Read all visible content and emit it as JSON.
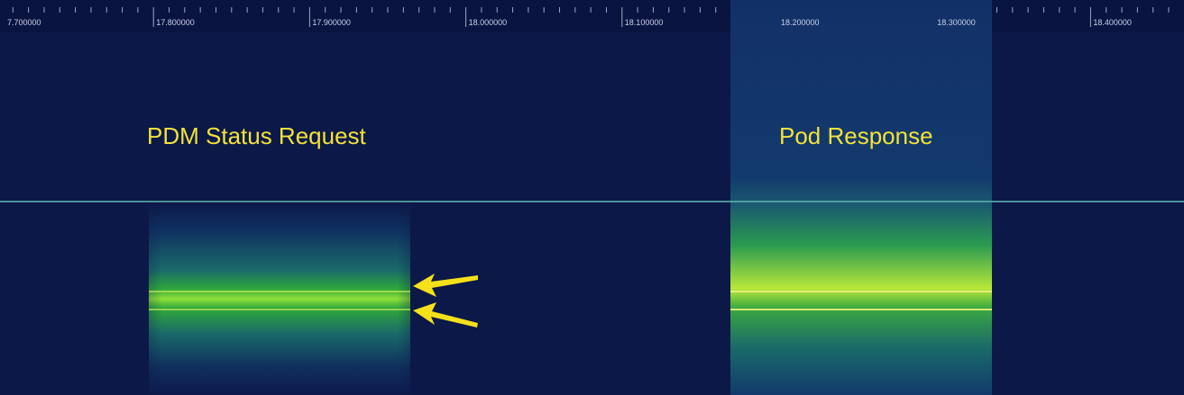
{
  "ruler": {
    "labels": [
      "7.700000",
      "17.800000",
      "17.900000",
      "18.000000",
      "18.100000",
      "18.200000",
      "18.300000",
      "18.400000"
    ]
  },
  "annotations": [
    "PDM Status Request",
    "Pod Response"
  ]
}
